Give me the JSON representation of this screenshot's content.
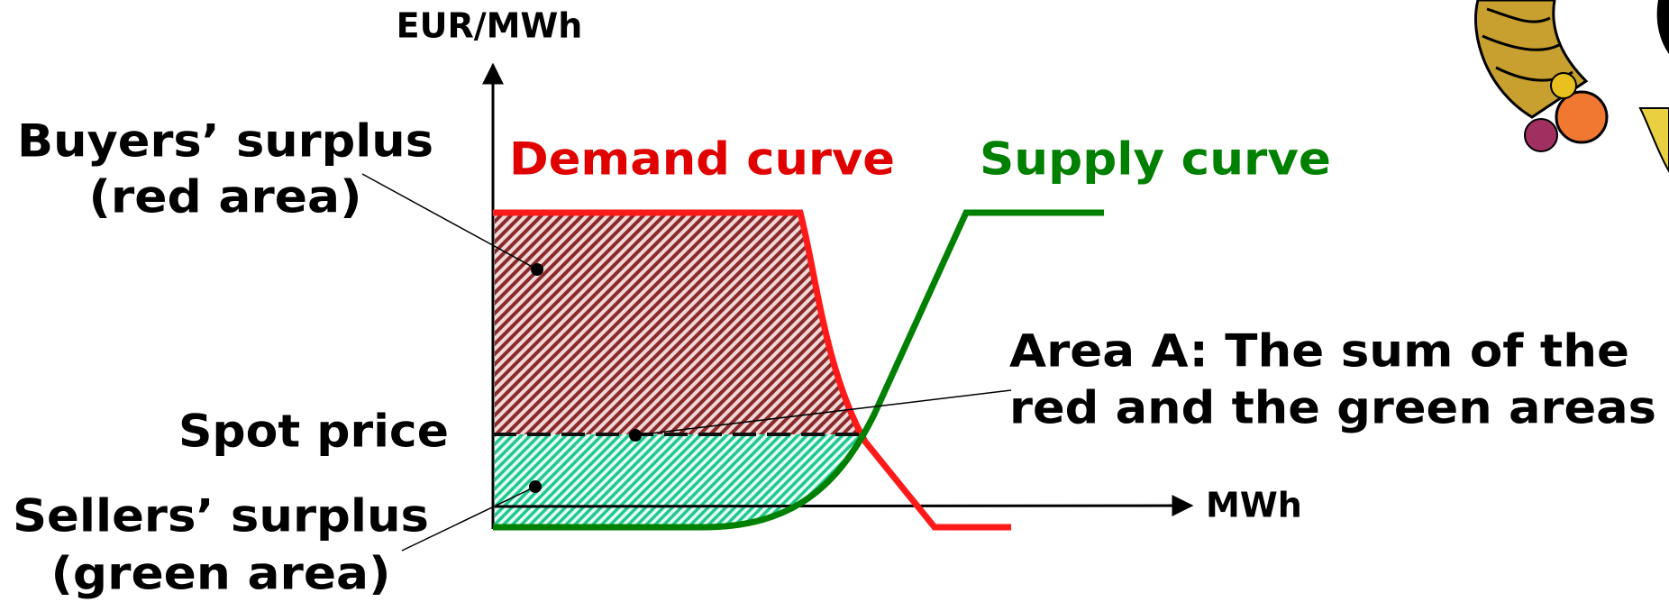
{
  "axes": {
    "y_label": "EUR/MWh",
    "x_label": "MWh"
  },
  "curves": {
    "demand": "Demand curve",
    "supply": "Supply curve"
  },
  "labels": {
    "buyers": [
      "Buyers’ surplus",
      "(red area)"
    ],
    "spot": "Spot price",
    "sellers": [
      "Sellers’ surplus",
      "(green area)"
    ],
    "area_a": [
      "Area A: The sum of the",
      "red and the green areas"
    ]
  }
}
